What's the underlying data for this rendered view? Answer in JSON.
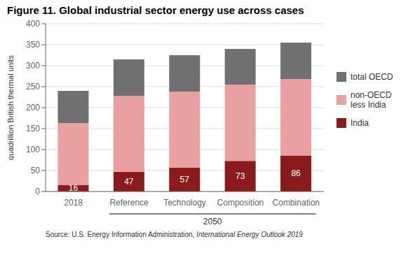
{
  "chart_data": {
    "type": "bar",
    "title": "Figure 11. Global industrial sector energy use across cases",
    "ylabel": "quadrillion British thermal units",
    "categories": [
      "2018",
      "Reference",
      "Technology",
      "Composition",
      "Combination"
    ],
    "series": [
      {
        "name": "India",
        "color": "#8B1A1A",
        "values": [
          16,
          47,
          57,
          73,
          86
        ],
        "data_labels": true
      },
      {
        "name": "non-OECD\nless India",
        "color": "#E8A0A0",
        "values": [
          147,
          181,
          181,
          182,
          182
        ]
      },
      {
        "name": "total OECD",
        "color": "#707070",
        "values": [
          77,
          87,
          87,
          85,
          87
        ]
      }
    ],
    "stacked": true,
    "ylim": [
      0,
      400
    ],
    "yticks": [
      0,
      50,
      100,
      150,
      200,
      250,
      300,
      350,
      400
    ],
    "grid": true,
    "legend": "right",
    "annotations": [
      {
        "text": "2050",
        "categories": [
          "Reference",
          "Technology",
          "Composition",
          "Combination"
        ]
      }
    ],
    "source": [
      "Source: U.S. Energy Information Administration, ",
      "International Energy Outlook 2019"
    ]
  }
}
